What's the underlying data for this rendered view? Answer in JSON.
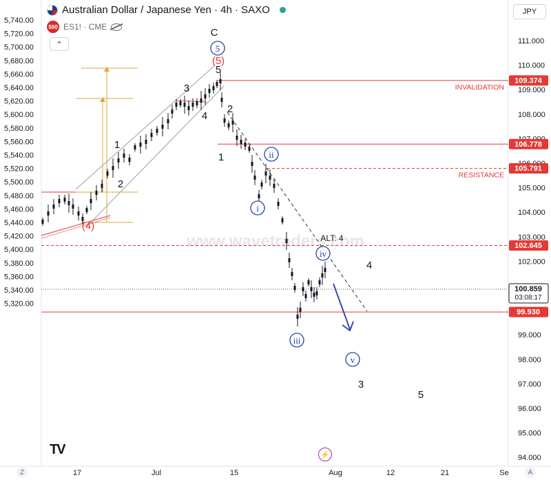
{
  "header": {
    "title": "Australian Dollar / Japanese Yen · 4h · SAXO",
    "sub_symbol": "ES1! · CME",
    "badge": "500",
    "currency": "JPY"
  },
  "chart_data": {
    "type": "candlestick",
    "left_axis": {
      "ticks": [
        "5,740.00",
        "5,720.00",
        "5,700.00",
        "5,680.00",
        "5,660.00",
        "5,640.00",
        "5,620.00",
        "5,600.00",
        "5,580.00",
        "5,560.00",
        "5,540.00",
        "5,520.00",
        "5,500.00",
        "5,480.00",
        "5,460.00",
        "5,440.00",
        "5,420.00",
        "5,400.00",
        "5,380.00",
        "5,360.00",
        "5,340.00",
        "5,320.00"
      ],
      "range": [
        5316,
        5744
      ]
    },
    "right_axis": {
      "ticks": [
        "111.000",
        "110.000",
        "109.000",
        "108.000",
        "107.000",
        "106.000",
        "105.000",
        "104.000",
        "103.000",
        "102.000",
        "101.000",
        "100.000",
        "99.000",
        "98.000",
        "97.000",
        "96.000",
        "95.000",
        "94.000"
      ],
      "range": [
        93.9,
        112.25
      ]
    },
    "x_axis": {
      "labels": [
        "17",
        "Jul",
        "15",
        "Aug",
        "12",
        "21",
        "Se"
      ],
      "label_dates": [
        "Jun 17",
        "Jul 1",
        "Jul 15",
        "Aug 1",
        "Aug 12",
        "Aug 21",
        "Sep"
      ]
    },
    "price_labels": [
      {
        "value": 109.374,
        "text": "109.374",
        "color": "#e53935"
      },
      {
        "value": 106.778,
        "text": "106.778",
        "color": "#e53935"
      },
      {
        "value": 105.791,
        "text": "105.791",
        "color": "#e53935"
      },
      {
        "value": 102.645,
        "text": "102.645",
        "color": "#e53935"
      },
      {
        "value": 99.93,
        "text": "99.930",
        "color": "#e53935"
      },
      {
        "value": 100.859,
        "text": "100.859",
        "text2": "03:08:17",
        "color": "#ffffff"
      }
    ],
    "level_labels": [
      {
        "text": "INVALIDATION",
        "value": 109.374
      },
      {
        "text": "RESISTANCE",
        "value": 105.791
      }
    ],
    "wave_labels": {
      "black": [
        "C",
        "5",
        "3",
        "4",
        "1",
        "2",
        "2",
        "1",
        "4",
        "3",
        "5"
      ],
      "red": [
        "(5)",
        "(4)"
      ],
      "circled": [
        "5",
        "ii",
        "i",
        "iv",
        "iii",
        "v"
      ]
    },
    "annotation": "ALT: 4",
    "watermark": "www.wavetraders.com"
  }
}
